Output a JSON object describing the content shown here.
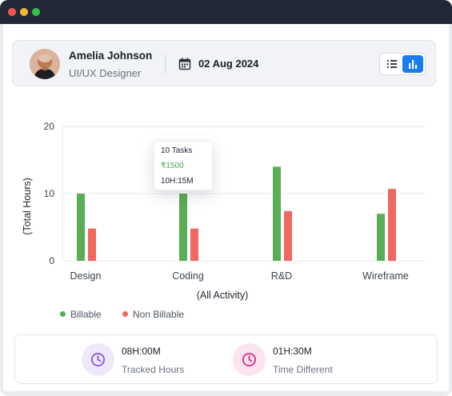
{
  "window": {
    "controls": [
      "close",
      "minimize",
      "maximize"
    ],
    "colors": {
      "close": "#f2564f",
      "minimize": "#f4b631",
      "maximize": "#35c24a",
      "titlebar": "#232838"
    }
  },
  "profile": {
    "name": "Amelia Johnson",
    "role": "UI/UX Designer",
    "date": "02 Aug 2024",
    "calendar_icon": "calendar-icon",
    "view_toggle": {
      "options": [
        "list-view",
        "chart-view"
      ],
      "selected": "chart-view",
      "accent": "#1a7cf2"
    }
  },
  "chart_data": {
    "type": "bar",
    "ylabel": "(Total Hours)",
    "xlabel": "(All Activity)",
    "ylim": [
      0,
      20
    ],
    "yticks": [
      0,
      10,
      20
    ],
    "grid": true,
    "categories": [
      "Design",
      "Coding",
      "R&D",
      "Wireframe"
    ],
    "series": [
      {
        "name": "Billable",
        "color": "#59ad54",
        "values": [
          10,
          10,
          14,
          7
        ]
      },
      {
        "name": "Non Billable",
        "color": "#f0675f",
        "values": [
          4.8,
          4.8,
          7.4,
          10.7
        ]
      }
    ],
    "legend": "bottom-left",
    "tooltip": {
      "category": "Coding",
      "tasks": "10 Tasks",
      "amount": "₹1500",
      "time": "10H:15M"
    }
  },
  "stats": {
    "tracked": {
      "value": "08H:00M",
      "label": "Tracked Hours",
      "icon": "clock-icon",
      "color": "#8e5bd9"
    },
    "difference": {
      "value": "01H:30M",
      "label": "Time Different",
      "icon": "clock-icon",
      "color": "#d6368f"
    }
  }
}
